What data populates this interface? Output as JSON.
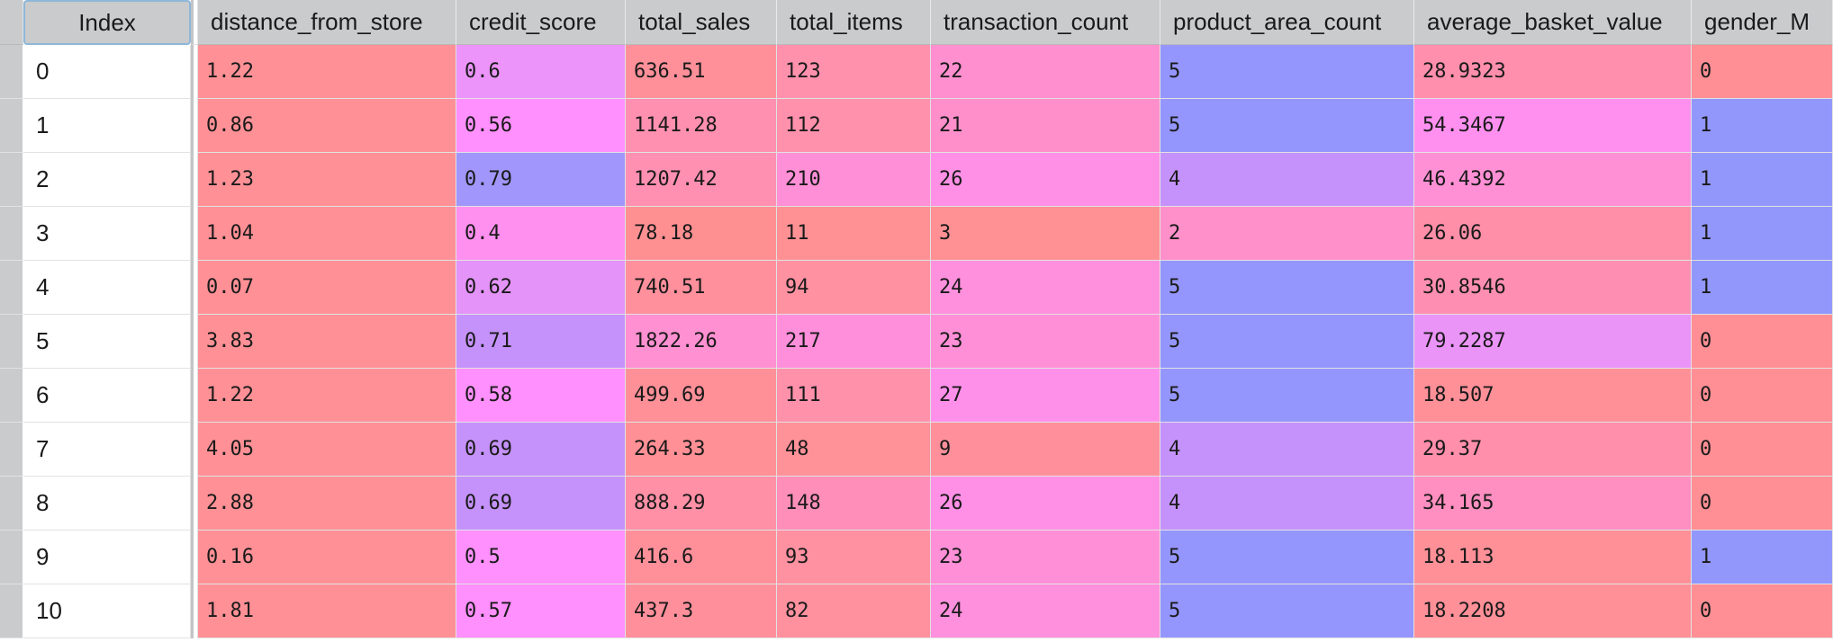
{
  "columns": [
    "Index",
    "distance_from_store",
    "credit_score",
    "total_sales",
    "total_items",
    "transaction_count",
    "product_area_count",
    "average_basket_value",
    "gender_M"
  ],
  "rows": [
    {
      "index": "0",
      "cells": [
        "1.22",
        "0.6",
        "636.51",
        "123",
        "22",
        "5",
        "28.9323",
        "0"
      ]
    },
    {
      "index": "1",
      "cells": [
        "0.86",
        "0.56",
        "1141.28",
        "112",
        "21",
        "5",
        "54.3467",
        "1"
      ]
    },
    {
      "index": "2",
      "cells": [
        "1.23",
        "0.79",
        "1207.42",
        "210",
        "26",
        "4",
        "46.4392",
        "1"
      ]
    },
    {
      "index": "3",
      "cells": [
        "1.04",
        "0.4",
        "78.18",
        "11",
        "3",
        "2",
        "26.06",
        "1"
      ]
    },
    {
      "index": "4",
      "cells": [
        "0.07",
        "0.62",
        "740.51",
        "94",
        "24",
        "5",
        "30.8546",
        "1"
      ]
    },
    {
      "index": "5",
      "cells": [
        "3.83",
        "0.71",
        "1822.26",
        "217",
        "23",
        "5",
        "79.2287",
        "0"
      ]
    },
    {
      "index": "6",
      "cells": [
        "1.22",
        "0.58",
        "499.69",
        "111",
        "27",
        "5",
        "18.507",
        "0"
      ]
    },
    {
      "index": "7",
      "cells": [
        "4.05",
        "0.69",
        "264.33",
        "48",
        "9",
        "4",
        "29.37",
        "0"
      ]
    },
    {
      "index": "8",
      "cells": [
        "2.88",
        "0.69",
        "888.29",
        "148",
        "26",
        "4",
        "34.165",
        "0"
      ]
    },
    {
      "index": "9",
      "cells": [
        "0.16",
        "0.5",
        "416.6",
        "93",
        "23",
        "5",
        "18.113",
        "1"
      ]
    },
    {
      "index": "10",
      "cells": [
        "1.81",
        "0.57",
        "437.3",
        "82",
        "24",
        "5",
        "18.2208",
        "0"
      ]
    }
  ],
  "cell_colors": [
    [
      "#ff9196",
      "#ec94fa",
      "#ff9099",
      "#ff91ad",
      "#ff8fcf",
      "#9596fd",
      "#ff8fac",
      "#ff8f94"
    ],
    [
      "#ff9196",
      "#ff90fd",
      "#ff90b0",
      "#ff91ac",
      "#ff8fcb",
      "#9596fd",
      "#ff90f0",
      "#9297fb"
    ],
    [
      "#ff9196",
      "#a096fb",
      "#ff90b2",
      "#ff8fd6",
      "#ff90e6",
      "#c592fb",
      "#ff90d6",
      "#9297fb"
    ],
    [
      "#ff9196",
      "#ff90ef",
      "#ff9092",
      "#ff9195",
      "#ff9195",
      "#ff90c9",
      "#ff8fa8",
      "#9297fb"
    ],
    [
      "#ff9196",
      "#e493f8",
      "#ff909c",
      "#ff91a1",
      "#ff90dd",
      "#9596fd",
      "#ff8fb2",
      "#9297fb"
    ],
    [
      "#ff9196",
      "#c592fb",
      "#ff90d2",
      "#ff8fdb",
      "#ff90d8",
      "#9596fd",
      "#eb94f8",
      "#ff8f94"
    ],
    [
      "#ff9196",
      "#ff90fd",
      "#ff9098",
      "#ff91ab",
      "#ff90ea",
      "#9596fd",
      "#ff9098",
      "#ff8f94"
    ],
    [
      "#ff9196",
      "#c592fb",
      "#ff9096",
      "#ff9199",
      "#ff909b",
      "#c592fb",
      "#ff8fab",
      "#ff8f94"
    ],
    [
      "#ff9196",
      "#c592fb",
      "#ff90a6",
      "#ff8fb8",
      "#ff90e6",
      "#c592fb",
      "#ff8fc0",
      "#ff8f94"
    ],
    [
      "#ff9196",
      "#ff90fd",
      "#ff909a",
      "#ff91a1",
      "#ff90d8",
      "#9596fd",
      "#ff9098",
      "#9297fb"
    ],
    [
      "#ff9196",
      "#ff90fd",
      "#ff909b",
      "#ff919f",
      "#ff90dd",
      "#9596fd",
      "#ff9098",
      "#ff8f94"
    ]
  ]
}
